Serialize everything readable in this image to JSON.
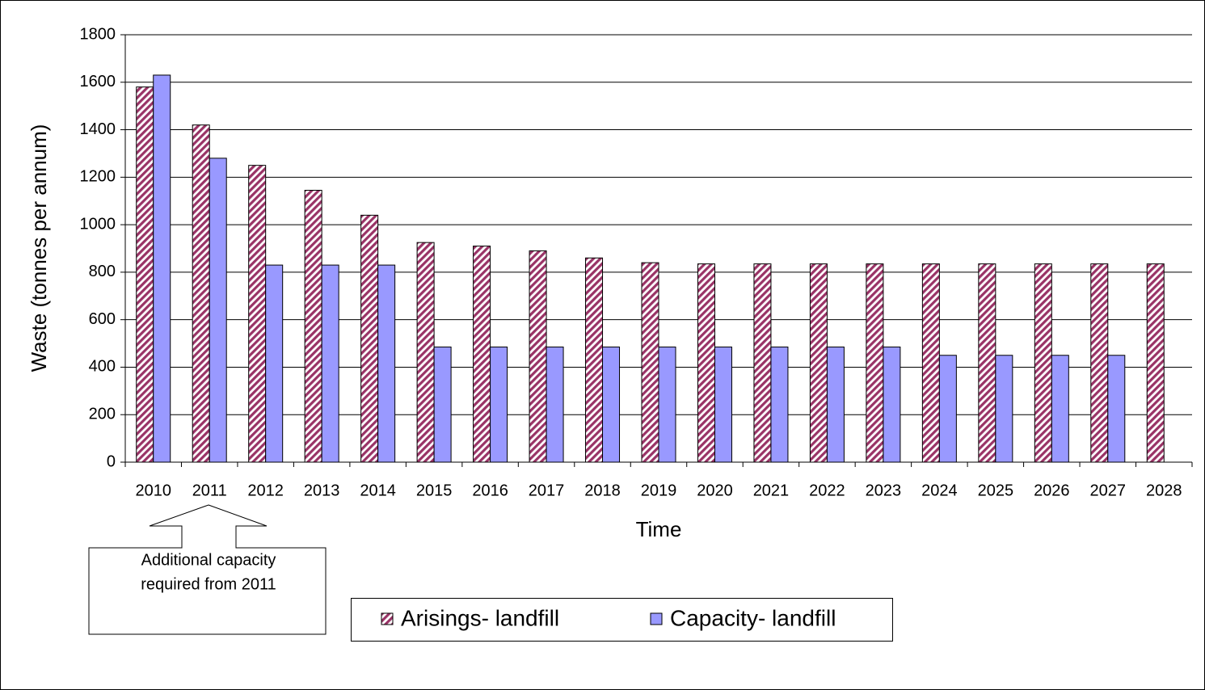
{
  "chart_data": {
    "type": "bar",
    "x_label": "Time",
    "y_label": "Waste (tonnes per annum)",
    "categories": [
      "2010",
      "2011",
      "2012",
      "2013",
      "2014",
      "2015",
      "2016",
      "2017",
      "2018",
      "2019",
      "2020",
      "2021",
      "2022",
      "2023",
      "2024",
      "2025",
      "2026",
      "2027",
      "2028"
    ],
    "series": [
      {
        "name": "Arisings- landfill",
        "color": "#993366",
        "pattern": "hatch",
        "values": [
          1580,
          1420,
          1250,
          1145,
          1040,
          925,
          910,
          890,
          860,
          840,
          835,
          835,
          835,
          835,
          835,
          835,
          835,
          835,
          835
        ]
      },
      {
        "name": "Capacity- landfill",
        "color": "#9999ff",
        "values": [
          1630,
          1280,
          830,
          830,
          830,
          485,
          485,
          485,
          485,
          485,
          485,
          485,
          485,
          485,
          450,
          450,
          450,
          450,
          null
        ]
      }
    ],
    "ylim": [
      0,
      1800
    ],
    "yticks": [
      0,
      200,
      400,
      600,
      800,
      1000,
      1200,
      1400,
      1600,
      1800
    ],
    "grid": true,
    "annotation": [
      "Additional capacity",
      "required from 2011"
    ]
  }
}
